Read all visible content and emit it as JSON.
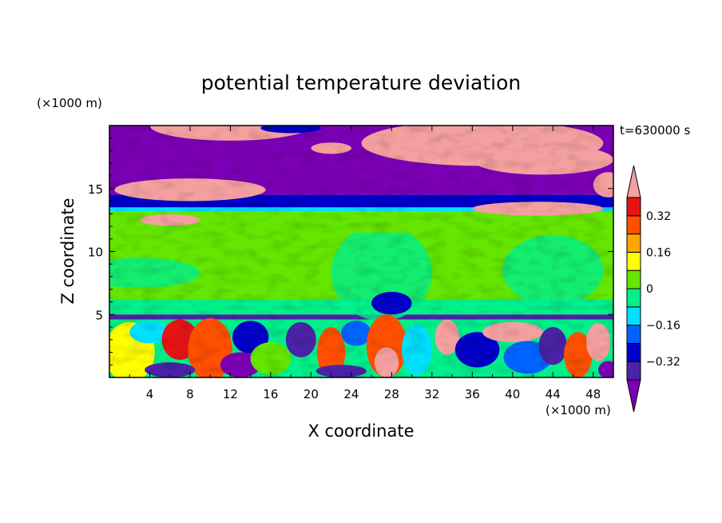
{
  "chart_data": {
    "type": "heatmap",
    "title": "potential temperature deviation",
    "time_label": "t=630000 s",
    "xlabel": "X coordinate",
    "ylabel": "Z coordinate",
    "x_unit": "(×1000 m)",
    "y_unit": "(×1000 m)",
    "xlim": [
      0,
      50
    ],
    "ylim": [
      0,
      20
    ],
    "x_ticks": [
      4,
      8,
      12,
      16,
      20,
      24,
      28,
      32,
      36,
      40,
      44,
      48
    ],
    "x_tick_labels": [
      "4",
      "8",
      "12",
      "16",
      "20",
      "24",
      "28",
      "32",
      "36",
      "40",
      "44",
      "48"
    ],
    "y_ticks": [
      5,
      10,
      15
    ],
    "y_tick_labels": [
      "5",
      "10",
      "15"
    ],
    "colorbar": {
      "levels": [
        -0.4,
        -0.32,
        -0.24,
        -0.16,
        -0.08,
        0,
        0.08,
        0.16,
        0.24,
        0.32,
        0.4
      ],
      "labeled_levels": [
        -0.32,
        -0.16,
        0,
        0.16,
        0.32
      ],
      "labels": [
        "0.32",
        "0.16",
        "0",
        "−0.16",
        "−0.32"
      ],
      "colors": [
        "#7b00b5",
        "#4a23a6",
        "#0000c8",
        "#0064ff",
        "#00e1ff",
        "#00f08c",
        "#64e600",
        "#ffff00",
        "#ffa500",
        "#ff5000",
        "#e61414",
        "#f5a0a0"
      ],
      "extend": "both"
    },
    "field_summary": {
      "z_bands": [
        {
          "z_range": [
            0,
            4.5
          ],
          "description": "turbulent mixed layer with alternating positive and negative deviations"
        },
        {
          "z_range": [
            4.5,
            5
          ],
          "description": "thin strongly negative layer"
        },
        {
          "z_range": [
            5,
            13.5
          ],
          "description": "near-zero deviation"
        },
        {
          "z_range": [
            13.5,
            14.5
          ],
          "description": "negative layer"
        },
        {
          "z_range": [
            14.5,
            20
          ],
          "description": "strongly negative with large positive patches"
        }
      ]
    }
  }
}
